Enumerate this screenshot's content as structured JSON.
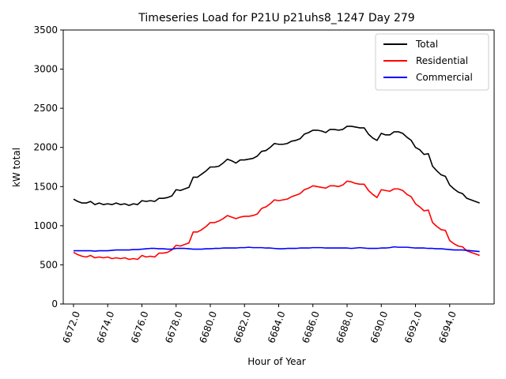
{
  "chart_data": {
    "type": "line",
    "title": "Timeseries Load for P21U p21uhs8_1247  Day 279",
    "xlabel": "Hour of Year",
    "ylabel": "kW total",
    "xlim": [
      6671.4,
      6696.6
    ],
    "ylim": [
      0,
      3500
    ],
    "xticks": [
      6672,
      6674,
      6676,
      6678,
      6680,
      6682,
      6684,
      6686,
      6688,
      6690,
      6692,
      6694
    ],
    "xtick_labels": [
      "6672.0",
      "6674.0",
      "6676.0",
      "6678.0",
      "6680.0",
      "6682.0",
      "6684.0",
      "6686.0",
      "6688.0",
      "6690.0",
      "6692.0",
      "6694.0"
    ],
    "yticks": [
      0,
      500,
      1000,
      1500,
      2000,
      2500,
      3000,
      3500
    ],
    "ytick_labels": [
      "0",
      "500",
      "1000",
      "1500",
      "2000",
      "2500",
      "3000",
      "3500"
    ],
    "legend": {
      "position": "upper right"
    },
    "x_start": 6672.0,
    "x_step": 0.25,
    "series": [
      {
        "name": "Total",
        "color": "#000000",
        "values": [
          1340,
          1310,
          1290,
          1290,
          1310,
          1270,
          1290,
          1270,
          1280,
          1270,
          1290,
          1270,
          1280,
          1260,
          1280,
          1270,
          1320,
          1310,
          1320,
          1310,
          1350,
          1350,
          1360,
          1380,
          1460,
          1450,
          1470,
          1490,
          1620,
          1620,
          1660,
          1700,
          1750,
          1750,
          1760,
          1800,
          1850,
          1830,
          1800,
          1840,
          1840,
          1850,
          1860,
          1890,
          1950,
          1960,
          2000,
          2050,
          2040,
          2040,
          2050,
          2080,
          2090,
          2110,
          2170,
          2190,
          2220,
          2220,
          2210,
          2190,
          2230,
          2230,
          2220,
          2230,
          2270,
          2270,
          2260,
          2250,
          2250,
          2170,
          2120,
          2090,
          2180,
          2160,
          2160,
          2200,
          2200,
          2180,
          2130,
          2090,
          2000,
          1970,
          1910,
          1920,
          1760,
          1700,
          1650,
          1630,
          1520,
          1470,
          1430,
          1410,
          1350,
          1330,
          1310,
          1290
        ]
      },
      {
        "name": "Residential",
        "color": "#ff0000",
        "values": [
          660,
          630,
          610,
          600,
          620,
          590,
          600,
          590,
          600,
          580,
          590,
          580,
          590,
          570,
          580,
          570,
          620,
          600,
          610,
          600,
          650,
          650,
          660,
          690,
          750,
          740,
          760,
          780,
          920,
          920,
          950,
          990,
          1040,
          1040,
          1060,
          1090,
          1130,
          1110,
          1090,
          1110,
          1120,
          1120,
          1130,
          1150,
          1220,
          1240,
          1280,
          1330,
          1320,
          1330,
          1340,
          1370,
          1390,
          1410,
          1460,
          1480,
          1510,
          1500,
          1490,
          1480,
          1510,
          1510,
          1500,
          1520,
          1570,
          1560,
          1540,
          1530,
          1530,
          1450,
          1400,
          1360,
          1460,
          1450,
          1440,
          1470,
          1470,
          1450,
          1400,
          1370,
          1280,
          1240,
          1190,
          1200,
          1040,
          990,
          950,
          940,
          810,
          770,
          740,
          730,
          680,
          660,
          640,
          620
        ]
      },
      {
        "name": "Commercial",
        "color": "#0000ff",
        "values": [
          680,
          680,
          680,
          680,
          680,
          675,
          680,
          680,
          680,
          685,
          690,
          690,
          690,
          690,
          695,
          695,
          700,
          705,
          710,
          710,
          705,
          705,
          700,
          700,
          710,
          710,
          710,
          705,
          700,
          700,
          700,
          705,
          705,
          710,
          710,
          715,
          715,
          715,
          715,
          720,
          720,
          725,
          720,
          720,
          720,
          715,
          715,
          710,
          705,
          705,
          710,
          710,
          710,
          715,
          715,
          715,
          720,
          720,
          720,
          715,
          715,
          715,
          715,
          715,
          715,
          710,
          715,
          720,
          715,
          710,
          710,
          710,
          715,
          715,
          720,
          730,
          725,
          725,
          725,
          720,
          715,
          715,
          715,
          710,
          710,
          705,
          705,
          700,
          695,
          690,
          690,
          690,
          685,
          680,
          675,
          670
        ]
      }
    ]
  }
}
